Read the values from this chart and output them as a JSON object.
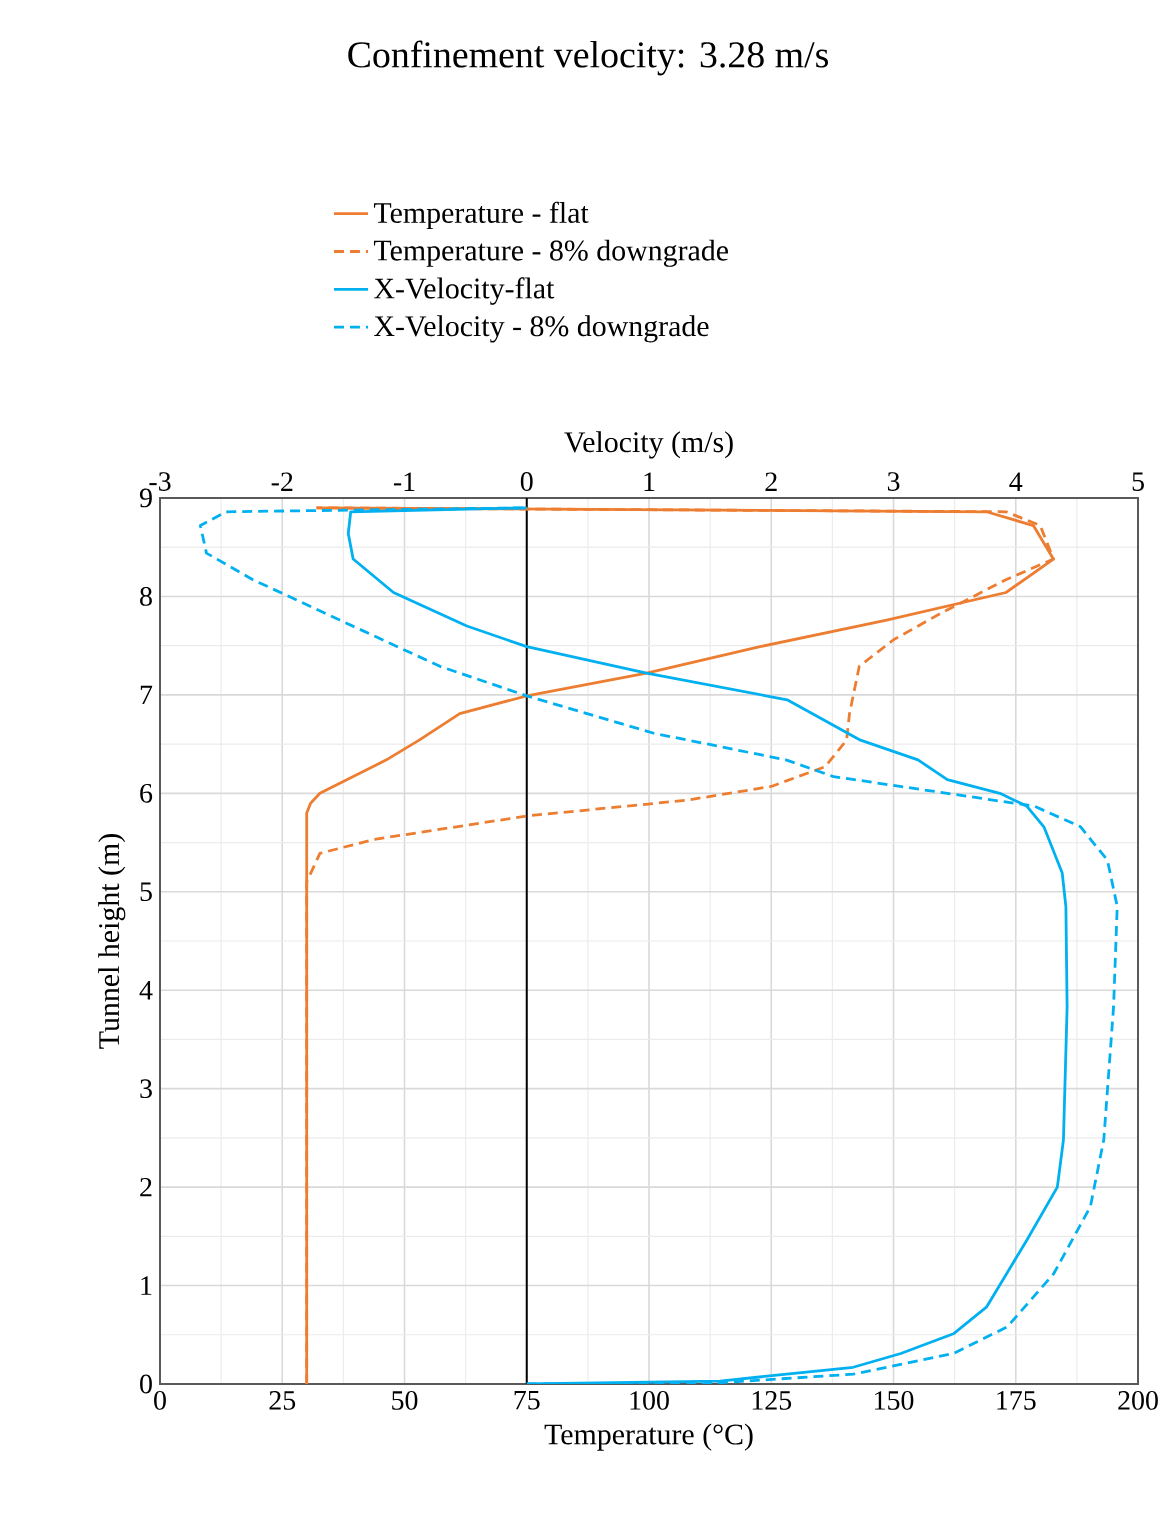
{
  "chart_data": {
    "type": "line",
    "title": "Confinement velocity: 3.28 m/s",
    "xlabel": "Temperature (°C)",
    "x2label": "Velocity (m/s)",
    "ylabel": "Tunnel height (m)",
    "xlim": [
      0,
      200
    ],
    "xticks": [
      0,
      25,
      50,
      75,
      100,
      125,
      150,
      175,
      200
    ],
    "x2lim": [
      -3,
      5
    ],
    "x2ticks": [
      -3,
      -2,
      -1,
      0,
      1,
      2,
      3,
      4,
      5
    ],
    "ylim": [
      0,
      9
    ],
    "yticks": [
      0,
      1,
      2,
      3,
      4,
      5,
      6,
      7,
      8,
      9
    ],
    "grid": true,
    "legend": "top",
    "ref_lines": [
      {
        "axis": "x",
        "value": 75,
        "color": "#000000"
      }
    ],
    "series": [
      {
        "name": "Temperature - flat",
        "color": "#ed7d31",
        "line_style": "solid",
        "x": [
          30,
          30,
          30.8,
          32.7,
          46.3,
          53,
          61.3,
          75,
          99.5,
          122.7,
          148.6,
          173,
          182.7,
          178.6,
          169,
          32
        ],
        "values": [
          0,
          5.8,
          5.9,
          6.0,
          6.34,
          6.54,
          6.81,
          6.99,
          7.22,
          7.49,
          7.76,
          8.04,
          8.38,
          8.72,
          8.86,
          8.9
        ]
      },
      {
        "name": "Temperature - 8% downgrade",
        "color": "#ed7d31",
        "line_style": "dashed",
        "x": [
          30,
          30,
          32.7,
          43.6,
          75,
          107.7,
          125,
          136,
          140.4,
          141,
          143,
          150,
          159.7,
          173,
          182.7,
          180,
          173,
          32
        ],
        "values": [
          0,
          5.1,
          5.39,
          5.53,
          5.77,
          5.93,
          6.07,
          6.27,
          6.54,
          6.81,
          7.29,
          7.56,
          7.83,
          8.17,
          8.38,
          8.72,
          8.86,
          8.9
        ]
      },
      {
        "name": "X-Velocity-flat",
        "color": "#00b0f0",
        "line_style": "solid",
        "axis": "x2",
        "x": [
          0,
          1.58,
          2.67,
          3.06,
          3.49,
          3.76,
          4.09,
          4.34,
          4.39,
          4.42,
          4.41,
          4.38,
          4.23,
          4.09,
          3.87,
          3.44,
          3.2,
          2.73,
          2.13,
          0.98,
          0,
          -0.49,
          -1.09,
          -1.42,
          -1.46,
          -1.44,
          0
        ],
        "values": [
          0,
          0.03,
          0.17,
          0.31,
          0.51,
          0.78,
          1.46,
          2.0,
          2.48,
          3.83,
          4.85,
          5.19,
          5.66,
          5.87,
          6.0,
          6.14,
          6.34,
          6.54,
          6.95,
          7.22,
          7.49,
          7.7,
          8.04,
          8.38,
          8.64,
          8.86,
          8.9
        ]
      },
      {
        "name": "X-Velocity - 8% downgrade",
        "color": "#00b0f0",
        "line_style": "dashed",
        "axis": "x2",
        "x": [
          0,
          1.42,
          2.67,
          3.49,
          3.93,
          4.31,
          4.61,
          4.72,
          4.8,
          4.83,
          4.75,
          4.53,
          4.15,
          3.44,
          2.51,
          2.12,
          1.04,
          0,
          -0.71,
          -1.53,
          -2.24,
          -2.62,
          -2.67,
          -2.46,
          0
        ],
        "values": [
          0,
          0,
          0.1,
          0.31,
          0.58,
          1.12,
          1.8,
          2.48,
          3.83,
          4.85,
          5.32,
          5.66,
          5.87,
          6.0,
          6.17,
          6.34,
          6.61,
          6.99,
          7.29,
          7.76,
          8.17,
          8.44,
          8.72,
          8.86,
          8.9
        ]
      }
    ]
  }
}
